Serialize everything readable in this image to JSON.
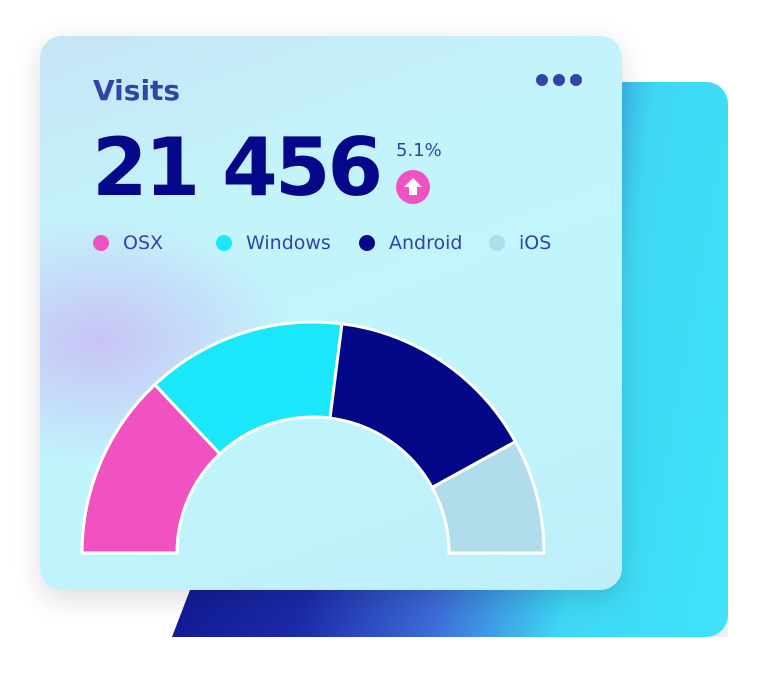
{
  "card": {
    "title": "Visits",
    "menu_icon": "more-horizontal-icon",
    "total": "21 456",
    "change": "5.1%",
    "change_direction": "up",
    "change_icon": "arrow-up-circle-icon"
  },
  "colors": {
    "accent": "#3444a6",
    "value": "#06088a",
    "up": "#f052c2"
  },
  "legend": [
    {
      "label": "OSX",
      "color": "#f052c2"
    },
    {
      "label": "Windows",
      "color": "#1ae8fa"
    },
    {
      "label": "Android",
      "color": "#020887"
    },
    {
      "label": "iOS",
      "color": "#b0dcec"
    }
  ],
  "chart_data": {
    "type": "pie",
    "variant": "half-donut",
    "categories": [
      "OSX",
      "Windows",
      "Android",
      "iOS"
    ],
    "values": [
      26,
      28,
      30,
      16
    ],
    "colors": [
      "#f052c2",
      "#1ae8fa",
      "#020887",
      "#b0dcec"
    ]
  }
}
